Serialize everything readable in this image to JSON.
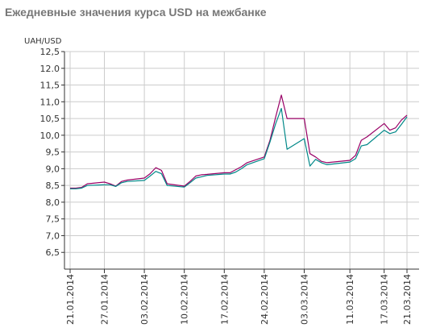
{
  "chart_data": {
    "type": "line",
    "title": "Ежедневные значения курса USD на межбанке",
    "ylabel": "UAH/USD",
    "xlabel": "",
    "ylim": [
      6.0,
      12.5
    ],
    "yticks": [
      "12,5",
      "12.0",
      "11,5",
      "11,0",
      "10,5",
      "10,0",
      "9,5",
      "9,0",
      "8,5",
      "8,0",
      "7,5",
      "7,0",
      "6,5"
    ],
    "xticks": [
      "21.01.2014",
      "27.01.2014",
      "03.02.2014",
      "10.02.2014",
      "17.02.2014",
      "24.02.2014",
      "03.03.2014",
      "11.03.2014",
      "17.03.2014",
      "21.03.2014"
    ],
    "grid": true,
    "legend": "none",
    "colors": {
      "series_1": "#990066",
      "series_2": "#008888",
      "grid": "#cccccc",
      "axis": "#333333"
    },
    "x": [
      "21.01.2014",
      "22.01.2014",
      "23.01.2014",
      "24.01.2014",
      "27.01.2014",
      "28.01.2014",
      "29.01.2014",
      "30.01.2014",
      "31.01.2014",
      "03.02.2014",
      "04.02.2014",
      "05.02.2014",
      "06.02.2014",
      "07.02.2014",
      "10.02.2014",
      "11.02.2014",
      "12.02.2014",
      "13.02.2014",
      "14.02.2014",
      "17.02.2014",
      "18.02.2014",
      "19.02.2014",
      "20.02.2014",
      "21.02.2014",
      "24.02.2014",
      "25.02.2014",
      "26.02.2014",
      "27.02.2014",
      "28.02.2014",
      "03.03.2014",
      "04.03.2014",
      "05.03.2014",
      "06.03.2014",
      "07.03.2014",
      "11.03.2014",
      "12.03.2014",
      "13.03.2014",
      "14.03.2014",
      "17.03.2014",
      "18.03.2014",
      "19.03.2014",
      "20.03.2014",
      "21.03.2014"
    ],
    "series": [
      {
        "values": [
          8.42,
          8.42,
          8.44,
          8.55,
          8.6,
          8.55,
          8.48,
          8.62,
          8.66,
          8.72,
          8.85,
          9.03,
          8.95,
          8.55,
          8.48,
          8.62,
          8.78,
          8.82,
          8.83,
          8.88,
          8.88,
          8.97,
          9.06,
          9.18,
          9.35,
          9.85,
          10.55,
          11.2,
          10.5,
          10.5,
          9.45,
          9.35,
          9.22,
          9.18,
          9.25,
          9.4,
          9.85,
          9.95,
          10.35,
          10.15,
          10.22,
          10.45,
          10.6
        ]
      },
      {
        "values": [
          8.4,
          8.4,
          8.42,
          8.5,
          8.52,
          8.52,
          8.47,
          8.58,
          8.62,
          8.65,
          8.78,
          8.92,
          8.85,
          8.5,
          8.45,
          8.58,
          8.72,
          8.76,
          8.8,
          8.84,
          8.84,
          8.9,
          9.0,
          9.12,
          9.3,
          9.8,
          10.35,
          10.8,
          9.58,
          9.9,
          9.08,
          9.28,
          9.18,
          9.12,
          9.2,
          9.3,
          9.68,
          9.72,
          10.15,
          10.05,
          10.1,
          10.32,
          10.55
        ]
      }
    ]
  }
}
